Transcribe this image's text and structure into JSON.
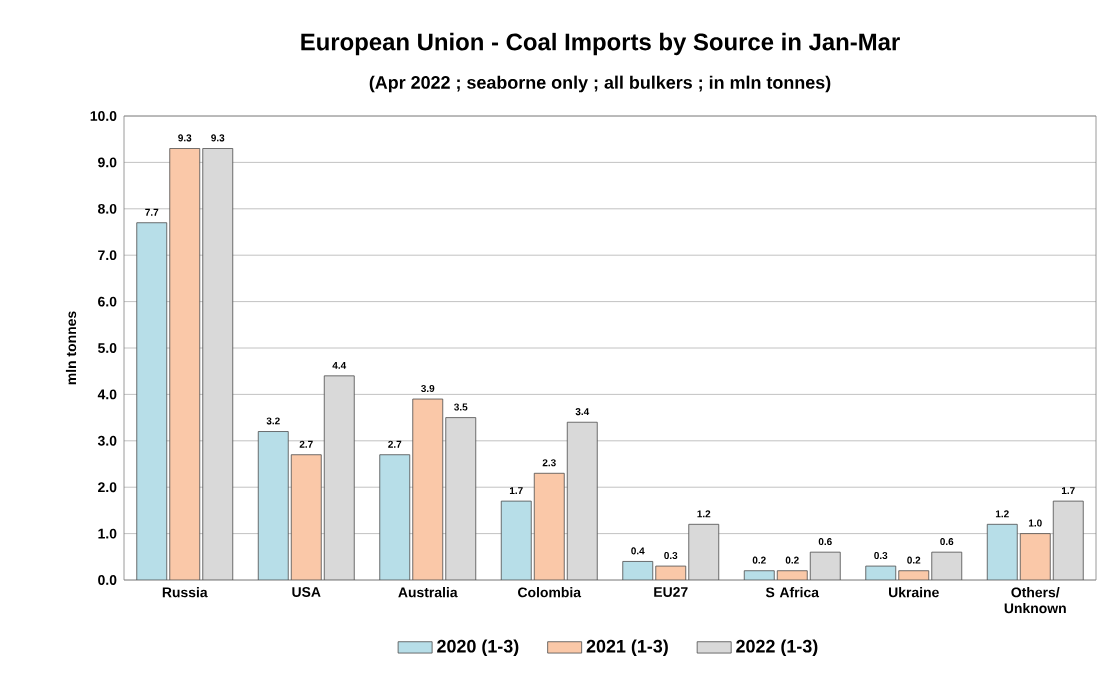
{
  "chart_data": {
    "type": "bar",
    "title": "European Union - Coal Imports by Source in Jan-Mar",
    "subtitle": "(Apr 2022 ; seaborne only ; all bulkers ; in mln tonnes)",
    "ylabel": "mln tonnes",
    "categories": [
      "Russia",
      "USA",
      "Australia",
      "Colombia",
      "EU27",
      "S Africa",
      "Ukraine",
      "Others/ Unknown"
    ],
    "series": [
      {
        "name": "2020 (1-3)",
        "color": "#b7dee8",
        "values": [
          7.7,
          3.2,
          2.7,
          1.7,
          0.4,
          0.2,
          0.3,
          1.2
        ],
        "value_labels": [
          "7.7",
          "3.2",
          "2.7",
          "1.7",
          "0.4",
          "0.2",
          "0.3",
          "1.2"
        ]
      },
      {
        "name": "2021 (1-3)",
        "color": "#fac8a8",
        "values": [
          9.3,
          2.7,
          3.9,
          2.3,
          0.3,
          0.2,
          0.2,
          1.0
        ],
        "value_labels": [
          "9.3",
          "2.7",
          "3.9",
          "2.3",
          "0.3",
          "0.2",
          "0.2",
          "1.0"
        ]
      },
      {
        "name": "2022 (1-3)",
        "color": "#d9d9d9",
        "values": [
          9.3,
          4.4,
          3.5,
          3.4,
          1.2,
          0.6,
          0.6,
          1.7
        ],
        "value_labels": [
          "9.3",
          "4.4",
          "3.5",
          "3.4",
          "1.2",
          "0.6",
          "0.6",
          "1.7"
        ]
      }
    ],
    "ylim": [
      0,
      10
    ],
    "yticks": [
      {
        "value": 0,
        "label": "0.0"
      },
      {
        "value": 1,
        "label": "1.0"
      },
      {
        "value": 2,
        "label": "2.0"
      },
      {
        "value": 3,
        "label": "3.0"
      },
      {
        "value": 4,
        "label": "4.0"
      },
      {
        "value": 5,
        "label": "5.0"
      },
      {
        "value": 6,
        "label": "6.0"
      },
      {
        "value": 7,
        "label": "7.0"
      },
      {
        "value": 8,
        "label": "8.0"
      },
      {
        "value": 9,
        "label": "9.0"
      },
      {
        "value": 10,
        "label": "10.0"
      }
    ],
    "grid": "y",
    "legend": "bottom"
  }
}
